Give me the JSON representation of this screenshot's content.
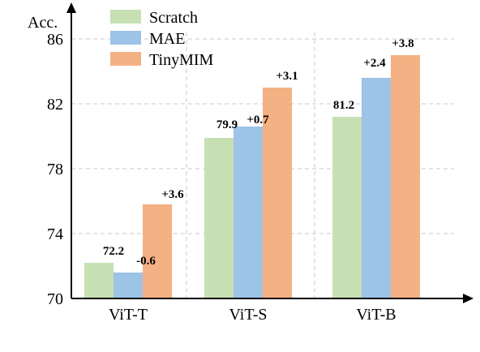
{
  "chart_data": {
    "type": "bar",
    "ylabel": "Acc.",
    "xlabel": "",
    "ylim": [
      70,
      87
    ],
    "yticks": [
      70,
      74,
      78,
      82,
      86
    ],
    "grid": true,
    "legend_position": "top-left",
    "categories": [
      "ViT-T",
      "ViT-S",
      "ViT-B"
    ],
    "series": [
      {
        "name": "Scratch",
        "color": "#c6e0b4",
        "values": [
          72.2,
          79.9,
          81.2
        ],
        "labels": [
          "72.2",
          "79.9",
          "81.2"
        ]
      },
      {
        "name": "MAE",
        "color": "#9dc3e6",
        "values": [
          71.6,
          80.6,
          83.6
        ],
        "labels": [
          "-0.6",
          "+0.7",
          "+2.4"
        ]
      },
      {
        "name": "TinyMIM",
        "color": "#f4b183",
        "values": [
          75.8,
          83.0,
          85.0
        ],
        "labels": [
          "+3.6",
          "+3.1",
          "+3.8"
        ]
      }
    ]
  }
}
